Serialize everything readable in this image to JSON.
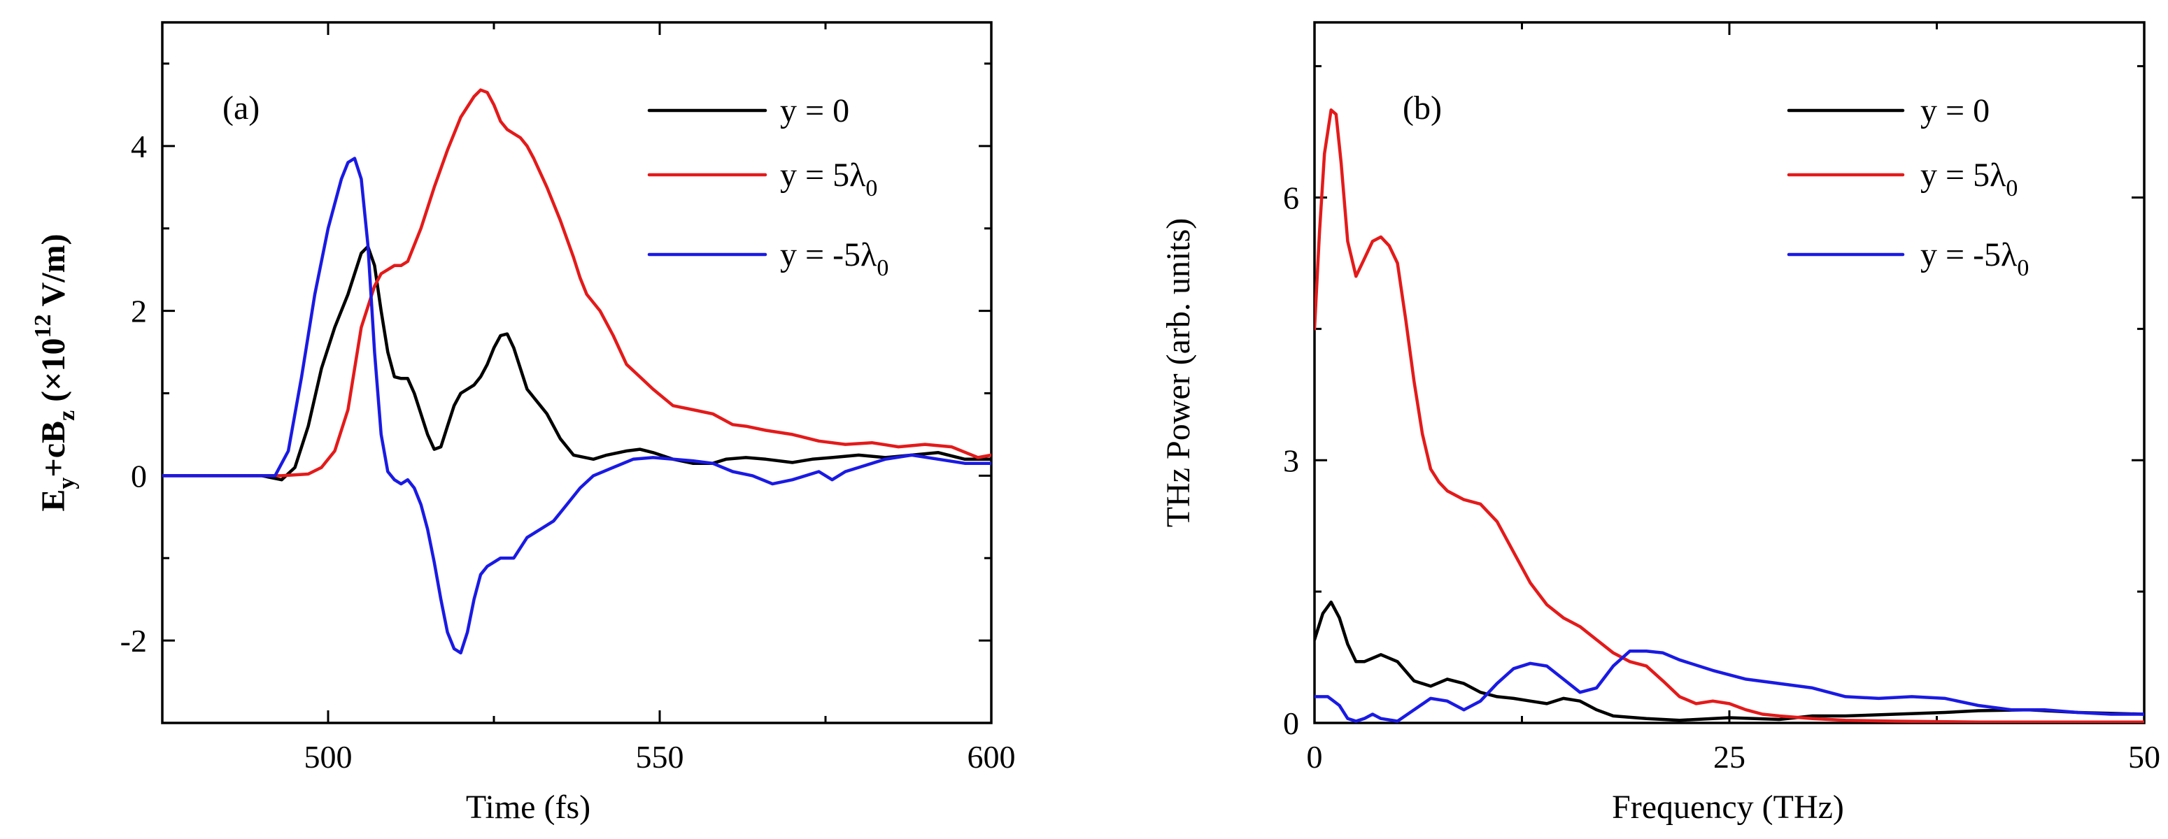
{
  "chart_data": [
    {
      "type": "line",
      "panel_label": "(a)",
      "xlabel": "Time (fs)",
      "ylabel": {
        "parts": [
          "E",
          "y",
          "+cB",
          "z",
          " (×10",
          "12",
          " V/m)"
        ]
      },
      "xlim": [
        475,
        600
      ],
      "ylim": [
        -3,
        5.5
      ],
      "xticks": [
        500,
        550,
        600
      ],
      "xtick_labels": [
        "500",
        "550",
        "600"
      ],
      "xminor": [
        475,
        525,
        575
      ],
      "yticks": [
        -2,
        0,
        2,
        4
      ],
      "ytick_labels": [
        "-2",
        "0",
        "2",
        "4"
      ],
      "yminor": [
        -3,
        -1,
        1,
        3,
        5
      ],
      "legend_position": "top-right",
      "series": [
        {
          "name": "y = 0",
          "label_parts": [
            "y = 0"
          ],
          "color": "#000000",
          "x": [
            475,
            490,
            493,
            495,
            497,
            499,
            501,
            503,
            504,
            505,
            506,
            507,
            508,
            509,
            510,
            511,
            512,
            513,
            514,
            515,
            516,
            517,
            518,
            519,
            520,
            521,
            522,
            523,
            524,
            525,
            526,
            527,
            528,
            529,
            530,
            531,
            532,
            533,
            534,
            535,
            537,
            540,
            542,
            545,
            547,
            549,
            552,
            555,
            558,
            560,
            563,
            566,
            570,
            573,
            576,
            580,
            584,
            588,
            592,
            596,
            600
          ],
          "y": [
            0,
            0,
            -0.05,
            0.1,
            0.6,
            1.3,
            1.8,
            2.2,
            2.45,
            2.7,
            2.78,
            2.55,
            2.0,
            1.5,
            1.2,
            1.18,
            1.18,
            1.0,
            0.75,
            0.5,
            0.32,
            0.35,
            0.6,
            0.85,
            1.0,
            1.05,
            1.1,
            1.2,
            1.35,
            1.55,
            1.7,
            1.72,
            1.55,
            1.3,
            1.05,
            0.95,
            0.85,
            0.75,
            0.6,
            0.45,
            0.25,
            0.2,
            0.25,
            0.3,
            0.32,
            0.28,
            0.2,
            0.15,
            0.15,
            0.2,
            0.22,
            0.2,
            0.16,
            0.2,
            0.22,
            0.25,
            0.22,
            0.25,
            0.28,
            0.2,
            0.2
          ]
        },
        {
          "name": "y = 5λ0",
          "label_parts": [
            "y = 5λ",
            "0"
          ],
          "color": "#e41a1a",
          "x": [
            475,
            493,
            497,
            499,
            501,
            503,
            505,
            507,
            508,
            510,
            511,
            512,
            514,
            516,
            518,
            520,
            522,
            523,
            524,
            525,
            526,
            527,
            528,
            529,
            530,
            531,
            533,
            535,
            537,
            538,
            539,
            541,
            543,
            545,
            547,
            549,
            552,
            555,
            558,
            561,
            563,
            566,
            570,
            574,
            578,
            582,
            586,
            590,
            594,
            598,
            600
          ],
          "y": [
            0,
            0,
            0.02,
            0.1,
            0.3,
            0.8,
            1.8,
            2.3,
            2.45,
            2.55,
            2.55,
            2.6,
            3.0,
            3.5,
            3.95,
            4.35,
            4.6,
            4.68,
            4.65,
            4.5,
            4.3,
            4.2,
            4.15,
            4.1,
            4.0,
            3.85,
            3.5,
            3.1,
            2.65,
            2.4,
            2.2,
            2.0,
            1.7,
            1.35,
            1.2,
            1.05,
            0.85,
            0.8,
            0.75,
            0.62,
            0.6,
            0.55,
            0.5,
            0.42,
            0.38,
            0.4,
            0.35,
            0.38,
            0.35,
            0.22,
            0.25
          ]
        },
        {
          "name": "y = -5λ0",
          "label_parts": [
            "y = -5λ",
            "0"
          ],
          "color": "#1a1ae4",
          "x": [
            475,
            492,
            494,
            496,
            498,
            500,
            502,
            503,
            504,
            505,
            506,
            507,
            508,
            509,
            510,
            511,
            512,
            513,
            514,
            515,
            516,
            517,
            518,
            519,
            520,
            521,
            522,
            523,
            524,
            526,
            528,
            530,
            532,
            534,
            536,
            538,
            540,
            543,
            546,
            549,
            552,
            555,
            558,
            561,
            564,
            567,
            570,
            574,
            576,
            578,
            580,
            584,
            588,
            592,
            596,
            600
          ],
          "y": [
            0,
            0,
            0.3,
            1.2,
            2.2,
            3.0,
            3.6,
            3.8,
            3.85,
            3.6,
            2.8,
            1.5,
            0.5,
            0.05,
            -0.05,
            -0.1,
            -0.05,
            -0.15,
            -0.35,
            -0.65,
            -1.05,
            -1.5,
            -1.9,
            -2.1,
            -2.15,
            -1.9,
            -1.5,
            -1.2,
            -1.1,
            -1.0,
            -1.0,
            -0.75,
            -0.65,
            -0.55,
            -0.35,
            -0.15,
            0.0,
            0.1,
            0.2,
            0.22,
            0.2,
            0.18,
            0.15,
            0.05,
            0.0,
            -0.1,
            -0.05,
            0.05,
            -0.05,
            0.05,
            0.1,
            0.2,
            0.25,
            0.2,
            0.15,
            0.15
          ]
        }
      ]
    },
    {
      "type": "line",
      "panel_label": "(b)",
      "xlabel": "Frequency (THz)",
      "ylabel": {
        "parts": [
          "THz Power (arb. units)"
        ]
      },
      "xlim": [
        0,
        50
      ],
      "ylim": [
        0,
        8
      ],
      "xticks": [
        0,
        25,
        50
      ],
      "xtick_labels": [
        "0",
        "25",
        "50"
      ],
      "xminor": [
        12.5,
        37.5
      ],
      "yticks": [
        0,
        3,
        6
      ],
      "ytick_labels": [
        "0",
        "3",
        "6"
      ],
      "yminor": [
        1.5,
        4.5,
        7.5
      ],
      "legend_position": "top-right",
      "series": [
        {
          "name": "y = 0",
          "label_parts": [
            "y = 0"
          ],
          "color": "#000000",
          "x": [
            0,
            0.5,
            1,
            1.5,
            2,
            2.5,
            3,
            4,
            5,
            6,
            7,
            8,
            9,
            10,
            11,
            12,
            13,
            14,
            15,
            16,
            17,
            18,
            20,
            22,
            25,
            28,
            30,
            32,
            35,
            38,
            40,
            43,
            46,
            50
          ],
          "y": [
            0.95,
            1.25,
            1.38,
            1.2,
            0.9,
            0.7,
            0.7,
            0.78,
            0.7,
            0.48,
            0.42,
            0.5,
            0.45,
            0.35,
            0.3,
            0.28,
            0.25,
            0.22,
            0.28,
            0.25,
            0.15,
            0.08,
            0.05,
            0.03,
            0.06,
            0.04,
            0.08,
            0.08,
            0.1,
            0.12,
            0.14,
            0.15,
            0.12,
            0.1
          ]
        },
        {
          "name": "y = 5λ0",
          "label_parts": [
            "y = 5λ",
            "0"
          ],
          "color": "#e41a1a",
          "x": [
            0,
            0.3,
            0.6,
            1,
            1.3,
            1.6,
            2,
            2.5,
            3,
            3.5,
            4,
            4.5,
            5,
            5.5,
            6,
            6.5,
            7,
            7.5,
            8,
            9,
            10,
            11,
            12,
            13,
            14,
            15,
            16,
            17,
            18,
            19,
            20,
            21,
            22,
            23,
            24,
            25,
            26,
            27,
            28,
            30,
            32,
            35,
            40,
            45,
            50
          ],
          "y": [
            4.5,
            5.6,
            6.5,
            7.0,
            6.95,
            6.4,
            5.5,
            5.1,
            5.3,
            5.5,
            5.55,
            5.45,
            5.25,
            4.6,
            3.9,
            3.3,
            2.9,
            2.75,
            2.65,
            2.55,
            2.5,
            2.3,
            1.95,
            1.6,
            1.35,
            1.2,
            1.1,
            0.95,
            0.8,
            0.7,
            0.65,
            0.48,
            0.3,
            0.22,
            0.25,
            0.22,
            0.15,
            0.1,
            0.08,
            0.05,
            0.03,
            0.02,
            0.01,
            0.01,
            0.01
          ]
        },
        {
          "name": "y = -5λ0",
          "label_parts": [
            "y = -5λ",
            "0"
          ],
          "color": "#1a1ae4",
          "x": [
            0,
            0.8,
            1.5,
            2,
            2.5,
            3,
            3.5,
            4,
            5,
            6,
            7,
            8,
            9,
            10,
            11,
            12,
            13,
            14,
            15,
            16,
            17,
            18,
            19,
            20,
            21,
            22,
            24,
            26,
            28,
            30,
            32,
            34,
            36,
            38,
            40,
            42,
            44,
            46,
            48,
            50
          ],
          "y": [
            0.3,
            0.3,
            0.2,
            0.05,
            0.02,
            0.05,
            0.1,
            0.05,
            0.02,
            0.15,
            0.28,
            0.25,
            0.15,
            0.25,
            0.45,
            0.62,
            0.68,
            0.65,
            0.5,
            0.35,
            0.4,
            0.65,
            0.82,
            0.82,
            0.8,
            0.72,
            0.6,
            0.5,
            0.45,
            0.4,
            0.3,
            0.28,
            0.3,
            0.28,
            0.2,
            0.15,
            0.15,
            0.12,
            0.1,
            0.1
          ]
        }
      ]
    }
  ]
}
